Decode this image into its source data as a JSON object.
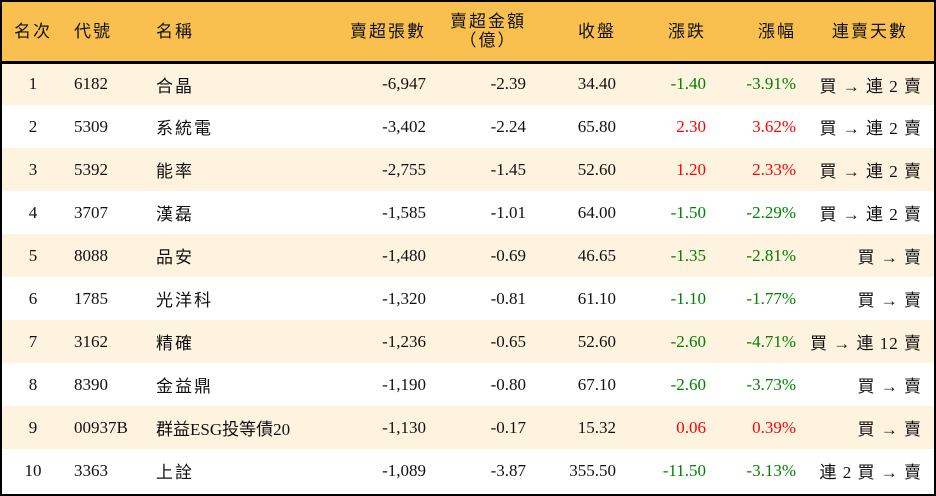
{
  "table": {
    "headers": {
      "rank": "名次",
      "code": "代號",
      "name": "名稱",
      "net_sell_lots": "賣超張數",
      "net_sell_amount_line1": "賣超金額",
      "net_sell_amount_line2": "（億）",
      "close": "收盤",
      "change": "漲跌",
      "change_pct": "漲幅",
      "consecutive_days": "連賣天數"
    },
    "colors": {
      "header_bg": "#F9C04F",
      "row_alt_bg": "#FDF3DF",
      "up": "#FF0000",
      "down": "#008000"
    },
    "rows": [
      {
        "rank": "1",
        "code": "6182",
        "name": "合晶",
        "net_sell_lots": "-6,947",
        "net_sell_amount": "-2.39",
        "close": "34.40",
        "change": "-1.40",
        "change_pct": "-3.91%",
        "direction": "down",
        "consecutive_days": "買 → 連 2 賣"
      },
      {
        "rank": "2",
        "code": "5309",
        "name": "系統電",
        "net_sell_lots": "-3,402",
        "net_sell_amount": "-2.24",
        "close": "65.80",
        "change": "2.30",
        "change_pct": "3.62%",
        "direction": "up",
        "consecutive_days": "買 → 連 2 賣"
      },
      {
        "rank": "3",
        "code": "5392",
        "name": "能率",
        "net_sell_lots": "-2,755",
        "net_sell_amount": "-1.45",
        "close": "52.60",
        "change": "1.20",
        "change_pct": "2.33%",
        "direction": "up",
        "consecutive_days": "買 → 連 2 賣"
      },
      {
        "rank": "4",
        "code": "3707",
        "name": "漢磊",
        "net_sell_lots": "-1,585",
        "net_sell_amount": "-1.01",
        "close": "64.00",
        "change": "-1.50",
        "change_pct": "-2.29%",
        "direction": "down",
        "consecutive_days": "買 → 連 2 賣"
      },
      {
        "rank": "5",
        "code": "8088",
        "name": "品安",
        "net_sell_lots": "-1,480",
        "net_sell_amount": "-0.69",
        "close": "46.65",
        "change": "-1.35",
        "change_pct": "-2.81%",
        "direction": "down",
        "consecutive_days": "買 → 賣"
      },
      {
        "rank": "6",
        "code": "1785",
        "name": "光洋科",
        "net_sell_lots": "-1,320",
        "net_sell_amount": "-0.81",
        "close": "61.10",
        "change": "-1.10",
        "change_pct": "-1.77%",
        "direction": "down",
        "consecutive_days": "買 → 賣"
      },
      {
        "rank": "7",
        "code": "3162",
        "name": "精確",
        "net_sell_lots": "-1,236",
        "net_sell_amount": "-0.65",
        "close": "52.60",
        "change": "-2.60",
        "change_pct": "-4.71%",
        "direction": "down",
        "consecutive_days": "買 → 連 12 賣"
      },
      {
        "rank": "8",
        "code": "8390",
        "name": "金益鼎",
        "net_sell_lots": "-1,190",
        "net_sell_amount": "-0.80",
        "close": "67.10",
        "change": "-2.60",
        "change_pct": "-3.73%",
        "direction": "down",
        "consecutive_days": "買 → 賣"
      },
      {
        "rank": "9",
        "code": "00937B",
        "name": "群益ESG投等債20",
        "net_sell_lots": "-1,130",
        "net_sell_amount": "-0.17",
        "close": "15.32",
        "change": "0.06",
        "change_pct": "0.39%",
        "direction": "up",
        "consecutive_days": "買 → 賣"
      },
      {
        "rank": "10",
        "code": "3363",
        "name": "上詮",
        "net_sell_lots": "-1,089",
        "net_sell_amount": "-3.87",
        "close": "355.50",
        "change": "-11.50",
        "change_pct": "-3.13%",
        "direction": "down",
        "consecutive_days": "連 2 買 → 賣"
      }
    ]
  }
}
